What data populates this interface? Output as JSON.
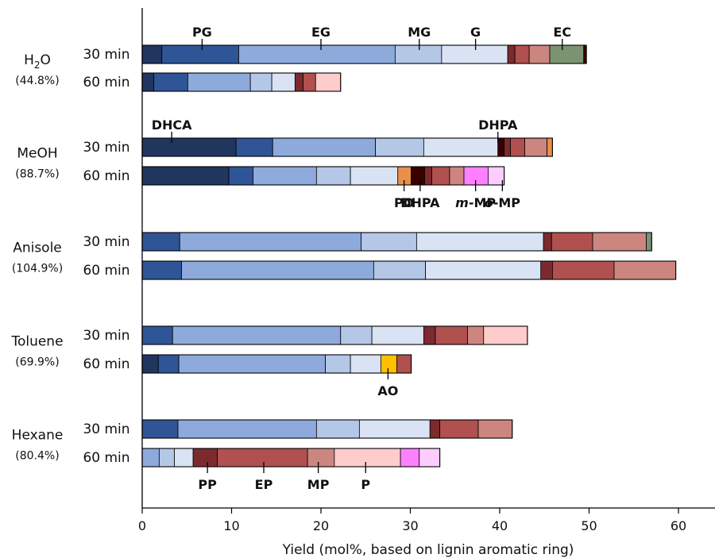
{
  "chart_data": {
    "type": "bar",
    "stacked": true,
    "orientation": "horizontal",
    "xlabel": "Yield (mol%, based on lignin aromatic ring)",
    "xlim": [
      0,
      64
    ],
    "xticks": [
      0,
      10,
      20,
      30,
      40,
      50,
      60
    ],
    "grid": false,
    "legend": "none",
    "colors": {
      "DHCA": "#21365f",
      "PG": "#2f5597",
      "EG": "#8eaadc",
      "MG": "#b4c7e7",
      "G": "#dae3f3",
      "DHPA": "#3a0000",
      "PP": "#7d2a2e",
      "EP": "#b0504f",
      "MP": "#cd8580",
      "P": "#ffcccc",
      "PO": "#e8904a",
      "AO": "#ffc000",
      "m-MP": "#ff80ff",
      "o-MP": "#ffccff",
      "EC": "#7b9370"
    },
    "groups": [
      {
        "solvent": "H2O",
        "total": "(44.8%)",
        "rows": [
          {
            "time": "30 min",
            "segments": [
              {
                "c": "DHCA",
                "v": 2.2
              },
              {
                "c": "PG",
                "v": 8.6
              },
              {
                "c": "EG",
                "v": 17.5
              },
              {
                "c": "MG",
                "v": 5.2
              },
              {
                "c": "G",
                "v": 7.4
              },
              {
                "c": "PP",
                "v": 0.8
              },
              {
                "c": "EP",
                "v": 1.6
              },
              {
                "c": "MP",
                "v": 2.3
              },
              {
                "c": "EC",
                "v": 3.8
              },
              {
                "c": "DHPA",
                "v": 0.3
              }
            ]
          },
          {
            "time": "60 min",
            "segments": [
              {
                "c": "DHCA",
                "v": 1.3
              },
              {
                "c": "PG",
                "v": 3.8
              },
              {
                "c": "EG",
                "v": 7.0
              },
              {
                "c": "MG",
                "v": 2.4
              },
              {
                "c": "G",
                "v": 2.6
              },
              {
                "c": "PP",
                "v": 0.9
              },
              {
                "c": "EP",
                "v": 1.4
              },
              {
                "c": "P",
                "v": 2.8
              }
            ]
          }
        ]
      },
      {
        "solvent": "MeOH",
        "total": "(88.7%)",
        "rows": [
          {
            "time": "30 min",
            "segments": [
              {
                "c": "DHCA",
                "v": 10.5
              },
              {
                "c": "PG",
                "v": 4.1
              },
              {
                "c": "EG",
                "v": 11.5
              },
              {
                "c": "MG",
                "v": 5.4
              },
              {
                "c": "G",
                "v": 8.3
              },
              {
                "c": "DHPA",
                "v": 0.7
              },
              {
                "c": "PP",
                "v": 0.7
              },
              {
                "c": "EP",
                "v": 1.6
              },
              {
                "c": "MP",
                "v": 2.5
              },
              {
                "c": "PO",
                "v": 0.6
              }
            ]
          },
          {
            "time": "60 min",
            "segments": [
              {
                "c": "DHCA",
                "v": 9.7
              },
              {
                "c": "PG",
                "v": 2.7
              },
              {
                "c": "EG",
                "v": 7.1
              },
              {
                "c": "MG",
                "v": 3.8
              },
              {
                "c": "G",
                "v": 5.3
              },
              {
                "c": "PO",
                "v": 1.5
              },
              {
                "c": "DHPA",
                "v": 1.5
              },
              {
                "c": "PP",
                "v": 0.8
              },
              {
                "c": "EP",
                "v": 2.0
              },
              {
                "c": "MP",
                "v": 1.6
              },
              {
                "c": "m-MP",
                "v": 2.7
              },
              {
                "c": "o-MP",
                "v": 1.8
              }
            ]
          }
        ]
      },
      {
        "solvent": "Anisole",
        "total": "(104.9%)",
        "rows": [
          {
            "time": "30 min",
            "segments": [
              {
                "c": "PG",
                "v": 4.2
              },
              {
                "c": "EG",
                "v": 20.3
              },
              {
                "c": "MG",
                "v": 6.2
              },
              {
                "c": "G",
                "v": 14.2
              },
              {
                "c": "PP",
                "v": 0.9
              },
              {
                "c": "EP",
                "v": 4.6
              },
              {
                "c": "MP",
                "v": 6.0
              },
              {
                "c": "EC",
                "v": 0.6
              }
            ]
          },
          {
            "time": "60 min",
            "segments": [
              {
                "c": "PG",
                "v": 4.4
              },
              {
                "c": "EG",
                "v": 21.5
              },
              {
                "c": "MG",
                "v": 5.8
              },
              {
                "c": "G",
                "v": 12.9
              },
              {
                "c": "PP",
                "v": 1.3
              },
              {
                "c": "EP",
                "v": 6.9
              },
              {
                "c": "MP",
                "v": 6.9
              }
            ]
          }
        ]
      },
      {
        "solvent": "Toluene",
        "total": "(69.9%)",
        "rows": [
          {
            "time": "30 min",
            "segments": [
              {
                "c": "PG",
                "v": 3.4
              },
              {
                "c": "EG",
                "v": 18.8
              },
              {
                "c": "MG",
                "v": 3.5
              },
              {
                "c": "G",
                "v": 5.8
              },
              {
                "c": "PP",
                "v": 1.3
              },
              {
                "c": "EP",
                "v": 3.6
              },
              {
                "c": "MP",
                "v": 1.8
              },
              {
                "c": "P",
                "v": 4.9
              }
            ]
          },
          {
            "time": "60 min",
            "segments": [
              {
                "c": "DHCA",
                "v": 1.8
              },
              {
                "c": "PG",
                "v": 2.3
              },
              {
                "c": "EG",
                "v": 16.4
              },
              {
                "c": "MG",
                "v": 2.8
              },
              {
                "c": "G",
                "v": 3.4
              },
              {
                "c": "AO",
                "v": 1.8
              },
              {
                "c": "EP",
                "v": 1.6
              }
            ]
          }
        ]
      },
      {
        "solvent": "Hexane",
        "total": "(80.4%)",
        "rows": [
          {
            "time": "30 min",
            "segments": [
              {
                "c": "PG",
                "v": 4.0
              },
              {
                "c": "EG",
                "v": 15.5
              },
              {
                "c": "MG",
                "v": 4.8
              },
              {
                "c": "G",
                "v": 7.9
              },
              {
                "c": "PP",
                "v": 1.1
              },
              {
                "c": "EP",
                "v": 4.3
              },
              {
                "c": "MP",
                "v": 3.8
              }
            ]
          },
          {
            "time": "60 min",
            "segments": [
              {
                "c": "EG",
                "v": 1.9
              },
              {
                "c": "MG",
                "v": 1.7
              },
              {
                "c": "G",
                "v": 2.1
              },
              {
                "c": "PP",
                "v": 2.7
              },
              {
                "c": "EP",
                "v": 10.1
              },
              {
                "c": "MP",
                "v": 3.0
              },
              {
                "c": "P",
                "v": 7.4
              },
              {
                "c": "m-MP",
                "v": 2.1
              },
              {
                "c": "o-MP",
                "v": 2.3
              }
            ]
          }
        ]
      }
    ],
    "annotations": [
      {
        "text": "PG",
        "row": [
          0,
          0
        ],
        "x": 6.7,
        "side": "above"
      },
      {
        "text": "EG",
        "row": [
          0,
          0
        ],
        "x": 20.0,
        "side": "above"
      },
      {
        "text": "MG",
        "row": [
          0,
          0
        ],
        "x": 31.0,
        "side": "above"
      },
      {
        "text": "G",
        "row": [
          0,
          0
        ],
        "x": 37.3,
        "side": "above"
      },
      {
        "text": "EC",
        "row": [
          0,
          0
        ],
        "x": 47.0,
        "side": "above"
      },
      {
        "text": "DHCA",
        "row": [
          1,
          0
        ],
        "x": 3.3,
        "side": "above"
      },
      {
        "text": "DHPA",
        "row": [
          1,
          0
        ],
        "x": 39.8,
        "side": "above"
      },
      {
        "text": "PO",
        "row": [
          1,
          1
        ],
        "x": 29.3,
        "side": "below"
      },
      {
        "text": "DHPA",
        "row": [
          1,
          1
        ],
        "x": 31.1,
        "side": "below"
      },
      {
        "text": "m-MP",
        "row": [
          1,
          1
        ],
        "x": 37.3,
        "side": "below"
      },
      {
        "text": "o-MP",
        "row": [
          1,
          1
        ],
        "x": 40.3,
        "side": "below"
      },
      {
        "text": "AO",
        "row": [
          3,
          1
        ],
        "x": 27.5,
        "side": "below"
      },
      {
        "text": "PP",
        "row": [
          4,
          1
        ],
        "x": 7.3,
        "side": "below"
      },
      {
        "text": "EP",
        "row": [
          4,
          1
        ],
        "x": 13.6,
        "side": "below"
      },
      {
        "text": "MP",
        "row": [
          4,
          1
        ],
        "x": 19.7,
        "side": "below"
      },
      {
        "text": "P",
        "row": [
          4,
          1
        ],
        "x": 25.0,
        "side": "below"
      }
    ]
  }
}
